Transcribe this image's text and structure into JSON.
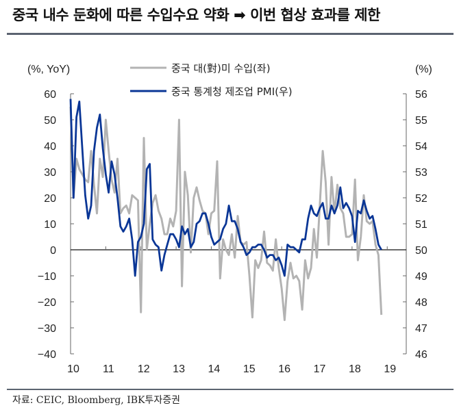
{
  "title": "중국 내수 둔화에 따른 수입수요 약화 ➡ 이번 협상 효과를 제한",
  "source": "자료: CEIC, Bloomberg, IBK투자증권",
  "chart_data": {
    "type": "line",
    "title": "중국 내수 둔화에 따른 수입수요 약화 ➡ 이번 협상 효과를 제한",
    "x_start": "2010-01",
    "x_frequency": "monthly",
    "x_tick_labels": [
      "10",
      "11",
      "12",
      "13",
      "14",
      "15",
      "16",
      "17",
      "18",
      "19"
    ],
    "left_axis": {
      "label": "(%, YoY)",
      "ylim": [
        -40,
        60
      ],
      "ticks": [
        60,
        50,
        40,
        30,
        20,
        10,
        0,
        -10,
        -20,
        -30,
        -40
      ]
    },
    "right_axis": {
      "label": "(%)",
      "ylim": [
        46,
        56
      ],
      "ticks": [
        56,
        55,
        54,
        53,
        52,
        51,
        50,
        49,
        48,
        47,
        46
      ]
    },
    "grid": false,
    "legend_position": "top-center",
    "series": [
      {
        "name": "중국 대(對)미 수입(좌)",
        "axis": "left",
        "color": "#b3b3b3",
        "values": [
          55,
          20,
          35,
          31,
          29,
          27,
          26,
          38,
          25,
          14,
          35,
          28,
          50,
          38,
          27,
          22,
          35,
          14,
          16,
          17,
          14,
          21,
          20,
          19,
          -24,
          43,
          0,
          10,
          18,
          21,
          15,
          12,
          6,
          6,
          12,
          9,
          15,
          50,
          -14,
          30,
          21,
          -1,
          20,
          24,
          19,
          15,
          14,
          6,
          14,
          15,
          34,
          -11,
          4,
          0,
          -2,
          6,
          -3,
          13,
          3,
          2,
          3,
          -10,
          -26,
          -4,
          -7,
          -4,
          7,
          -5,
          -6,
          -8,
          4,
          -7,
          -15,
          -27,
          -12,
          -5,
          -11,
          -10,
          -12,
          -23,
          -4,
          -11,
          -7,
          8,
          -3,
          17,
          38,
          26,
          2,
          28,
          14,
          25,
          16,
          14,
          5,
          5,
          6,
          27,
          -4,
          5,
          21,
          11,
          10,
          11,
          2,
          -2,
          -25
        ]
      },
      {
        "name": "중국 통계청 제조업 PMI(우)",
        "axis": "right",
        "color": "#0a3696",
        "values": [
          55.8,
          52.0,
          55.1,
          55.7,
          53.9,
          52.1,
          51.2,
          51.7,
          53.8,
          54.7,
          55.2,
          53.9,
          52.9,
          52.2,
          53.4,
          52.9,
          52.0,
          50.9,
          50.7,
          50.9,
          51.2,
          50.4,
          49.0,
          50.3,
          50.5,
          51.0,
          53.1,
          53.3,
          50.4,
          50.2,
          50.1,
          49.2,
          49.8,
          50.2,
          50.6,
          50.6,
          50.4,
          50.1,
          50.9,
          50.6,
          50.8,
          50.1,
          50.3,
          51.0,
          51.1,
          51.4,
          51.4,
          51.0,
          50.5,
          50.2,
          50.3,
          50.4,
          50.8,
          51.0,
          51.7,
          51.1,
          51.1,
          50.8,
          50.3,
          50.1,
          49.8,
          49.9,
          50.1,
          50.1,
          50.2,
          50.2,
          50.0,
          49.7,
          49.8,
          49.8,
          49.6,
          49.7,
          49.4,
          49.0,
          50.2,
          50.1,
          50.1,
          50.0,
          49.9,
          50.4,
          50.4,
          51.2,
          51.7,
          51.4,
          51.3,
          51.6,
          51.8,
          51.2,
          51.2,
          51.7,
          51.4,
          51.7,
          52.4,
          51.6,
          51.8,
          51.6,
          51.3,
          50.3,
          51.5,
          51.4,
          51.9,
          51.5,
          51.2,
          51.3,
          50.8,
          50.2,
          50.0
        ]
      }
    ]
  }
}
